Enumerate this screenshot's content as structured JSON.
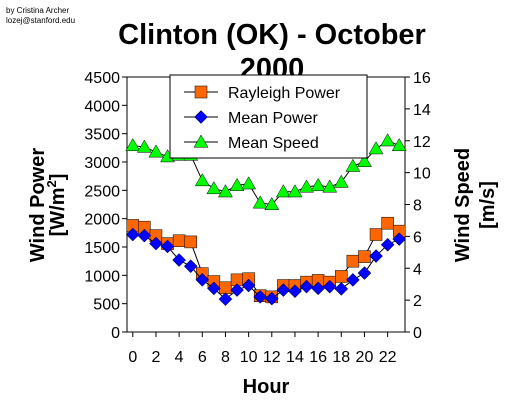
{
  "credit": {
    "line1": "by Cristina Archer",
    "line2": "lozej@stanford.edu"
  },
  "chart_data": {
    "type": "line",
    "title_line1": "Clinton (OK) - October",
    "title_line2": "2000",
    "xlabel": "Hour",
    "ylabel_left_main": "Wind Power",
    "ylabel_left_unit_pre": "[W/m",
    "ylabel_left_unit_sup": "2",
    "ylabel_left_unit_post": "]",
    "ylabel_right_main": "Wind Speed",
    "ylabel_right_unit": "[m/s]",
    "xlim": [
      -0.5,
      23.5
    ],
    "ylim_left": [
      0,
      4500
    ],
    "ylim_right": [
      0,
      16
    ],
    "x_ticks": [
      0,
      2,
      4,
      6,
      8,
      10,
      12,
      14,
      16,
      18,
      20,
      22
    ],
    "y_left_ticks": [
      0,
      500,
      1000,
      1500,
      2000,
      2500,
      3000,
      3500,
      4000,
      4500
    ],
    "y_right_ticks": [
      0,
      2,
      4,
      6,
      8,
      10,
      12,
      14,
      16
    ],
    "x": [
      0,
      1,
      2,
      3,
      4,
      5,
      6,
      7,
      8,
      9,
      10,
      11,
      12,
      13,
      14,
      15,
      16,
      17,
      18,
      19,
      20,
      21,
      22,
      23
    ],
    "series": [
      {
        "name": "Rayleigh Power",
        "axis": "left",
        "marker": "square",
        "color": "#ff6600",
        "values": [
          1880,
          1850,
          1700,
          1560,
          1610,
          1590,
          1030,
          890,
          780,
          920,
          940,
          640,
          620,
          820,
          820,
          880,
          910,
          880,
          980,
          1250,
          1330,
          1720,
          1920,
          1780
        ]
      },
      {
        "name": "Mean Power",
        "axis": "left",
        "marker": "diamond",
        "color": "#0000ff",
        "values": [
          1720,
          1700,
          1560,
          1510,
          1270,
          1160,
          920,
          770,
          580,
          740,
          820,
          620,
          590,
          740,
          720,
          800,
          770,
          800,
          760,
          920,
          1040,
          1340,
          1540,
          1640
        ]
      },
      {
        "name": "Mean Speed",
        "axis": "right",
        "marker": "triangle",
        "color": "#00ff00",
        "values": [
          11.7,
          11.6,
          11.3,
          11.0,
          11.1,
          11.1,
          9.5,
          9.0,
          8.8,
          9.2,
          9.3,
          8.1,
          8.0,
          8.8,
          8.8,
          9.1,
          9.2,
          9.1,
          9.4,
          10.4,
          10.7,
          11.5,
          12.0,
          11.7
        ]
      }
    ],
    "legend_placement": "top-center",
    "grid": false
  }
}
